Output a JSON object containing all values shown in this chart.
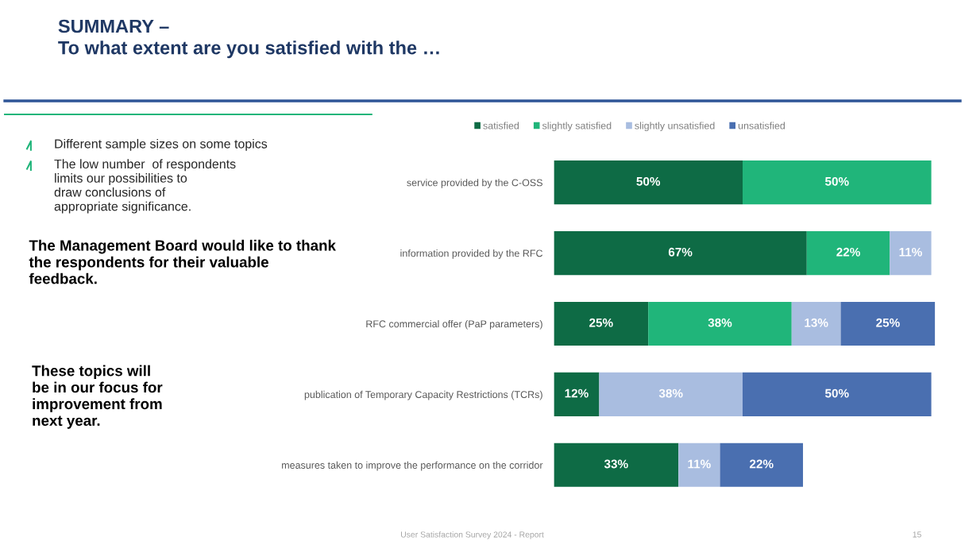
{
  "chart_data": {
    "type": "bar",
    "orientation": "horizontal",
    "stacked": true,
    "tick_labels": "y",
    "grid": false,
    "legend": "top",
    "title": "SUMMARY –\nTo what extent are you satisfied with the …",
    "categories": [
      "service provided by the C-OSS",
      "information provided by the RFC",
      "RFC commercial offer (PaP parameters)",
      "publication of Temporary Capacity Restrictions (TCRs)",
      "measures taken to improve the performance on the corridor"
    ],
    "series": [
      {
        "name": "satisfied",
        "color": "#0e6b45",
        "values": [
          50,
          67,
          25,
          12,
          33
        ],
        "value_labels": [
          "50%",
          "67%",
          "25%",
          "12%",
          "33%"
        ]
      },
      {
        "name": "slightly satisfied",
        "color": "#20b57a",
        "values": [
          50,
          22,
          38,
          null,
          null
        ],
        "value_labels": [
          "50%",
          "22%",
          "38%",
          null,
          null
        ]
      },
      {
        "name": "slightly unsatisfied",
        "color": "#a9bde0",
        "values": [
          null,
          11,
          13,
          38,
          11
        ],
        "value_labels": [
          null,
          "11%",
          "13%",
          "38%",
          "11%"
        ]
      },
      {
        "name": "unsatisfied",
        "color": "#4a6fb0",
        "values": [
          null,
          null,
          25,
          50,
          22
        ],
        "value_labels": [
          null,
          null,
          "25%",
          "50%",
          "22%"
        ]
      }
    ],
    "annotations": [
      "Different sample sizes on some topics",
      "The low number  of respondents limits our possibilities to draw conclusions of appropriate significance.",
      "The Management Board would like to thank the respondents for their valuable feedback.",
      "These topics will be in our focus for improvement from next year.",
      "User Satisfaction Survey 2024 - Report",
      "15"
    ]
  }
}
